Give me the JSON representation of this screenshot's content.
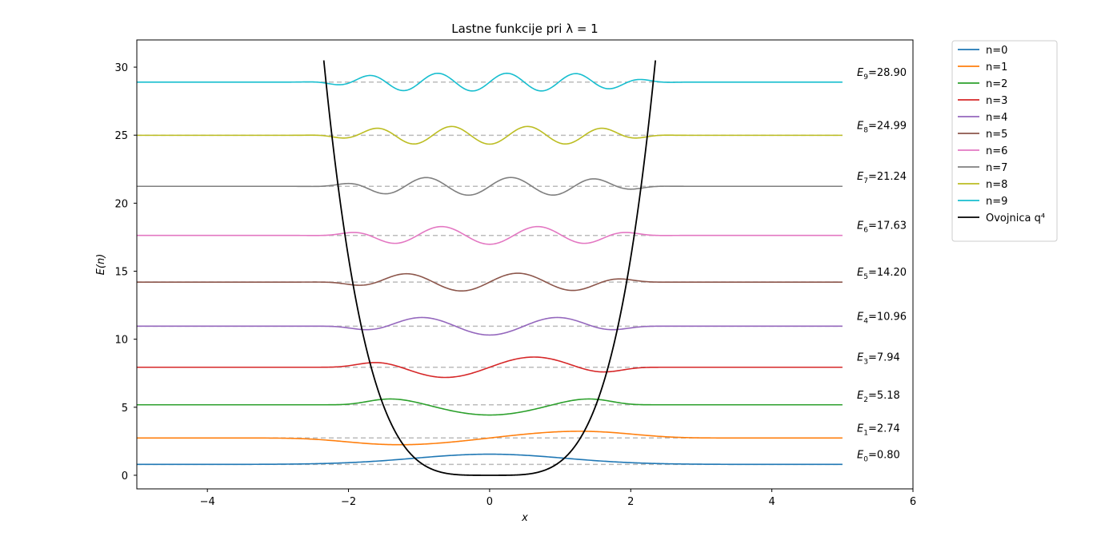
{
  "chart_data": {
    "type": "line",
    "title": "Lastne funkcije pri λ = 1",
    "xlabel": "x",
    "ylabel": "E(n)",
    "xlim": [
      -5,
      6
    ],
    "ylim": [
      -1,
      32
    ],
    "x_range": [
      -5,
      5
    ],
    "x_ticks": [
      -4,
      -2,
      0,
      2,
      4,
      6
    ],
    "x_tick_labels": [
      "−4",
      "−2",
      "0",
      "2",
      "4",
      "6"
    ],
    "y_ticks": [
      0,
      5,
      10,
      15,
      20,
      25,
      30
    ],
    "y_tick_labels": [
      "0",
      "5",
      "10",
      "15",
      "20",
      "25",
      "30"
    ],
    "grid": false,
    "legend_position": "outside-top-right",
    "energy_line_color": "#bbbbbb",
    "series": [
      {
        "name": "n=0",
        "n": 0,
        "energy": 0.8,
        "label": "=0.80",
        "color": "#1f77b4",
        "amplitude": 0.75,
        "center": 0.0,
        "width": 1.5
      },
      {
        "name": "n=1",
        "n": 1,
        "energy": 2.74,
        "label": "=2.74",
        "color": "#ff7f0e",
        "amplitude": 0.75,
        "center": 0.0,
        "width": 1.6
      },
      {
        "name": "n=2",
        "n": 2,
        "energy": 5.18,
        "label": "=5.18",
        "color": "#2ca02c",
        "amplitude": 0.75,
        "center": 0.0,
        "width": 1.7
      },
      {
        "name": "n=3",
        "n": 3,
        "energy": 7.94,
        "label": "=7.94",
        "color": "#d62728",
        "amplitude": 0.75,
        "center": 0.0,
        "width": 1.8
      },
      {
        "name": "n=4",
        "n": 4,
        "energy": 10.96,
        "label": "=10.96",
        "color": "#9467bd",
        "amplitude": 0.65,
        "center": 0.0,
        "width": 1.85
      },
      {
        "name": "n=5",
        "n": 5,
        "energy": 14.2,
        "label": "=14.20",
        "color": "#8c564b",
        "amplitude": 0.65,
        "center": 0.0,
        "width": 1.9
      },
      {
        "name": "n=6",
        "n": 6,
        "energy": 17.63,
        "label": "=17.63",
        "color": "#e377c2",
        "amplitude": 0.65,
        "center": 0.0,
        "width": 1.95
      },
      {
        "name": "n=7",
        "n": 7,
        "energy": 21.24,
        "label": "=21.24",
        "color": "#7f7f7f",
        "amplitude": 0.65,
        "center": 0.0,
        "width": 2.0
      },
      {
        "name": "n=8",
        "n": 8,
        "energy": 24.99,
        "label": "=24.99",
        "color": "#bcbd22",
        "amplitude": 0.65,
        "center": 0.0,
        "width": 2.05
      },
      {
        "name": "n=9",
        "n": 9,
        "energy": 28.9,
        "label": "=28.90",
        "color": "#17becf",
        "amplitude": 0.65,
        "center": 0.0,
        "width": 2.1
      }
    ],
    "envelope": {
      "name": "Ovojnica q⁴",
      "color": "#000000",
      "function": "q^4",
      "x_range": [
        -2.35,
        2.35
      ]
    }
  }
}
